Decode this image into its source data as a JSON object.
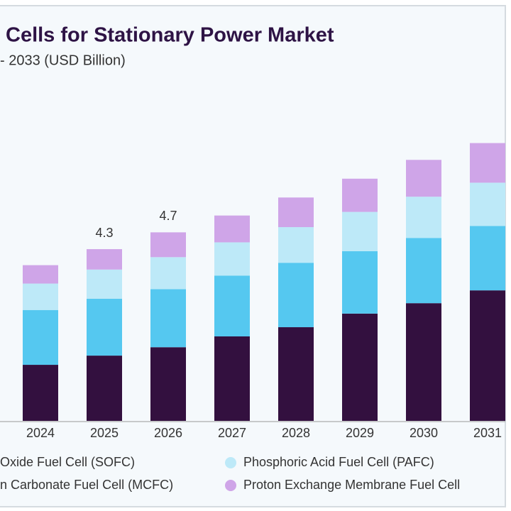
{
  "chart_data": {
    "type": "stacked-bar",
    "title": "Cells for Stationary Power Market",
    "subtitle": "- 2033 (USD Billion)",
    "categories": [
      "2024",
      "2025",
      "2026",
      "2027",
      "2028",
      "2029",
      "2030",
      "2031"
    ],
    "series": [
      {
        "name": "Oxide Fuel Cell (SOFC)",
        "color": "#33103f",
        "values": [
          1.4,
          1.63,
          1.84,
          2.11,
          2.34,
          2.68,
          2.94,
          3.26
        ]
      },
      {
        "name": "n Carbonate Fuel Cell (MCFC)",
        "color": "#55c8f0",
        "values": [
          1.37,
          1.42,
          1.45,
          1.52,
          1.61,
          1.56,
          1.63,
          1.61
        ]
      },
      {
        "name": "Phosphoric Acid Fuel Cell (PAFC)",
        "color": "#bde9f8",
        "values": [
          0.66,
          0.73,
          0.8,
          0.83,
          0.89,
          0.98,
          1.03,
          1.08
        ]
      },
      {
        "name": "Proton Exchange Membrane Fuel Cell",
        "color": "#cfa5e8",
        "values": [
          0.46,
          0.51,
          0.62,
          0.67,
          0.74,
          0.83,
          0.92,
          0.99
        ]
      }
    ],
    "total_labels": [
      null,
      4.3,
      4.7,
      null,
      null,
      null,
      null,
      null
    ]
  }
}
